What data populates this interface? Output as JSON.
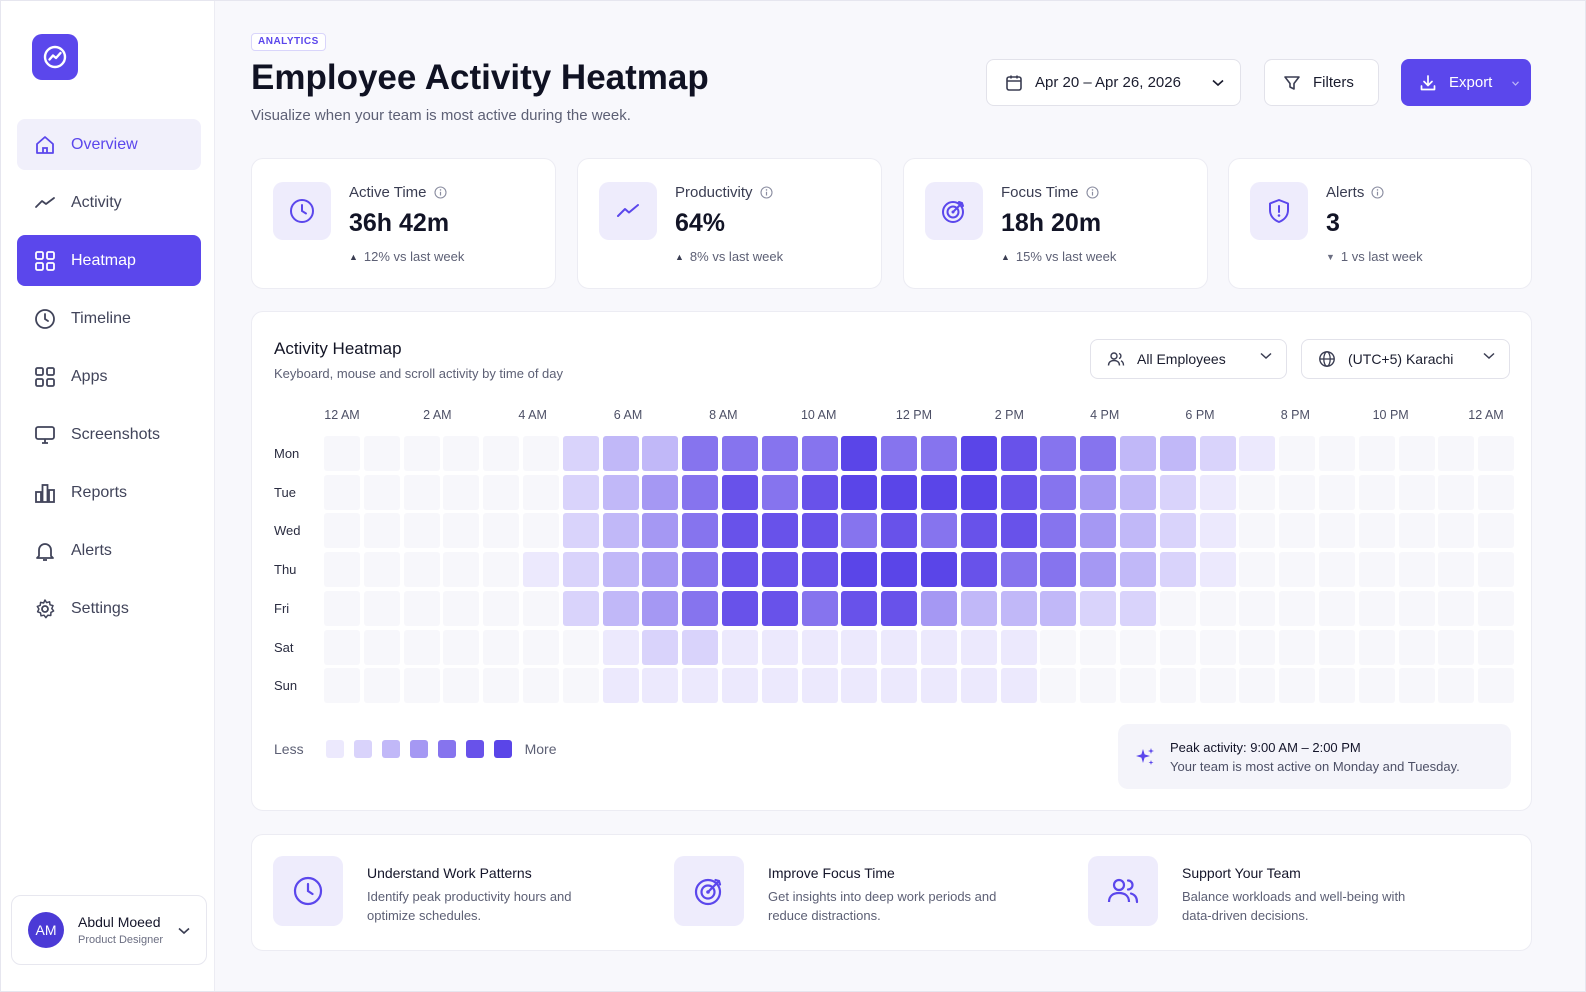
{
  "sidebar": {
    "logo_icon": "activity-chart-icon",
    "items": [
      {
        "label": "Overview",
        "icon": "home-icon",
        "state": "soft"
      },
      {
        "label": "Activity",
        "icon": "trend-line-icon",
        "state": ""
      },
      {
        "label": "Heatmap",
        "icon": "grid-icon",
        "state": "active"
      },
      {
        "label": "Timeline",
        "icon": "clock-icon",
        "state": ""
      },
      {
        "label": "Apps",
        "icon": "apps-grid-icon",
        "state": ""
      },
      {
        "label": "Screenshots",
        "icon": "monitor-icon",
        "state": ""
      },
      {
        "label": "Reports",
        "icon": "bar-chart-icon",
        "state": ""
      },
      {
        "label": "Alerts",
        "icon": "bell-icon",
        "state": ""
      },
      {
        "label": "Settings",
        "icon": "gear-icon",
        "state": ""
      }
    ],
    "user": {
      "initials": "AM",
      "name": "Abdul Moeed",
      "role": "Product Designer"
    }
  },
  "header": {
    "badge": "ANALYTICS",
    "title": "Employee Activity Heatmap",
    "subtitle": "Visualize when your team is most active during the week.",
    "date_range": "Apr 20 – Apr 26, 2026",
    "filters_label": "Filters",
    "export_label": "Export"
  },
  "stats": [
    {
      "label": "Active Time",
      "value": "36h 42m",
      "delta": "12% vs last week",
      "direction": "up",
      "icon": "clock-icon"
    },
    {
      "label": "Productivity",
      "value": "64%",
      "delta": "8% vs last week",
      "direction": "up",
      "icon": "trend-line-icon"
    },
    {
      "label": "Focus Time",
      "value": "18h 20m",
      "delta": "15% vs last week",
      "direction": "up",
      "icon": "target-icon"
    },
    {
      "label": "Alerts",
      "value": "3",
      "delta": "1 vs last week",
      "direction": "down",
      "icon": "shield-alert-icon"
    }
  ],
  "heatmap": {
    "title": "Activity Heatmap",
    "subtitle": "Keyboard, mouse and scroll activity by time of day",
    "employee_filter": "All Employees",
    "timezone": "(UTC+5) Karachi",
    "hour_labels": [
      "12 AM",
      "2 AM",
      "4 AM",
      "6 AM",
      "8 AM",
      "10 AM",
      "12 PM",
      "2 PM",
      "4 PM",
      "6 PM",
      "8 PM",
      "10 PM",
      "12 AM"
    ],
    "days": [
      "Mon",
      "Tue",
      "Wed",
      "Thu",
      "Fri",
      "Sat",
      "Sun"
    ],
    "palette": [
      "#f7f7fb",
      "#ece9fd",
      "#d9d3fb",
      "#c1b8f8",
      "#a598f3",
      "#8674ee",
      "#6852ea",
      "#5a45e8"
    ],
    "levels": [
      [
        0,
        0,
        0,
        0,
        0,
        0,
        2,
        3,
        3,
        5,
        5,
        5,
        5,
        7,
        5,
        5,
        7,
        6,
        5,
        5,
        3,
        3,
        2,
        1,
        0,
        0,
        0,
        0,
        0,
        0
      ],
      [
        0,
        0,
        0,
        0,
        0,
        0,
        2,
        3,
        4,
        5,
        6,
        5,
        6,
        7,
        7,
        7,
        7,
        6,
        5,
        4,
        3,
        2,
        1,
        0,
        0,
        0,
        0,
        0,
        0,
        0
      ],
      [
        0,
        0,
        0,
        0,
        0,
        0,
        2,
        3,
        4,
        5,
        6,
        6,
        6,
        5,
        6,
        5,
        6,
        6,
        5,
        4,
        3,
        2,
        1,
        0,
        0,
        0,
        0,
        0,
        0,
        0
      ],
      [
        0,
        0,
        0,
        0,
        0,
        1,
        2,
        3,
        4,
        5,
        6,
        6,
        6,
        7,
        7,
        7,
        6,
        5,
        5,
        4,
        3,
        2,
        1,
        0,
        0,
        0,
        0,
        0,
        0,
        0
      ],
      [
        0,
        0,
        0,
        0,
        0,
        0,
        2,
        3,
        4,
        5,
        6,
        6,
        5,
        6,
        6,
        4,
        3,
        3,
        3,
        2,
        2,
        0,
        0,
        0,
        0,
        0,
        0,
        0,
        0,
        0
      ],
      [
        0,
        0,
        0,
        0,
        0,
        0,
        0,
        1,
        2,
        2,
        1,
        1,
        1,
        1,
        1,
        1,
        1,
        1,
        0,
        0,
        0,
        0,
        0,
        0,
        0,
        0,
        0,
        0,
        0,
        0
      ],
      [
        0,
        0,
        0,
        0,
        0,
        0,
        0,
        1,
        1,
        1,
        1,
        1,
        1,
        1,
        1,
        1,
        1,
        1,
        0,
        0,
        0,
        0,
        0,
        0,
        0,
        0,
        0,
        0,
        0,
        0
      ]
    ],
    "legend_less": "Less",
    "legend_more": "More",
    "peak_title": "Peak activity: 9:00 AM – 2:00 PM",
    "peak_text": "Your team is most active on Monday and Tuesday."
  },
  "tips": [
    {
      "title": "Understand Work Patterns",
      "text": "Identify peak productivity hours and optimize schedules.",
      "icon": "clock-icon"
    },
    {
      "title": "Improve Focus Time",
      "text": "Get insights into deep work periods and reduce distractions.",
      "icon": "target-icon"
    },
    {
      "title": "Support Your Team",
      "text": "Balance workloads and well-being with data-driven decisions.",
      "icon": "users-icon"
    }
  ]
}
